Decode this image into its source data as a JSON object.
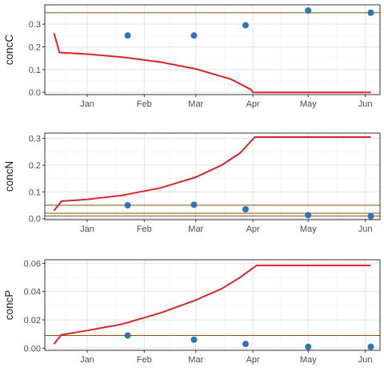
{
  "chart_data": [
    {
      "type": "line",
      "ylabel": "concC",
      "xlabel": "",
      "title": "",
      "x_ticks": [
        "Jan",
        "Feb",
        "Mar",
        "Apr",
        "May",
        "Jun"
      ],
      "ylim": [
        -0.01,
        0.385
      ],
      "y_ticks": [
        0.0,
        0.1,
        0.2,
        0.3
      ],
      "y_tick_labels": [
        "0.0",
        "0.1",
        "0.2",
        "0.3"
      ],
      "grid": true,
      "hline": 0.35,
      "hline_color": "#8c510a",
      "line_color": "#d62728",
      "point_color": "#2e75b6",
      "line": [
        {
          "x": "2020-12-14",
          "y": 0.26
        },
        {
          "x": "2020-12-17",
          "y": 0.175
        },
        {
          "x": "2021-01-01",
          "y": 0.168
        },
        {
          "x": "2021-01-20",
          "y": 0.155
        },
        {
          "x": "2021-02-10",
          "y": 0.133
        },
        {
          "x": "2021-03-01",
          "y": 0.103
        },
        {
          "x": "2021-03-20",
          "y": 0.058
        },
        {
          "x": "2021-03-31",
          "y": 0.012
        },
        {
          "x": "2021-04-01",
          "y": 0.0
        },
        {
          "x": "2021-06-04",
          "y": 0.0
        }
      ],
      "points": [
        {
          "x": "2021-01-23",
          "y": 0.25
        },
        {
          "x": "2021-02-28",
          "y": 0.25
        },
        {
          "x": "2021-03-28",
          "y": 0.295
        },
        {
          "x": "2021-05-01",
          "y": 0.36
        },
        {
          "x": "2021-06-04",
          "y": 0.35
        }
      ]
    },
    {
      "type": "line",
      "ylabel": "concN",
      "xlabel": "",
      "title": "",
      "x_ticks": [
        "Jan",
        "Feb",
        "Mar",
        "Apr",
        "May",
        "Jun"
      ],
      "ylim": [
        -0.004,
        0.32
      ],
      "y_ticks": [
        0.0,
        0.1,
        0.2,
        0.3
      ],
      "y_tick_labels": [
        "0.0",
        "0.1",
        "0.2",
        "0.3"
      ],
      "grid": true,
      "hlines": [
        0.05,
        0.02,
        0.01
      ],
      "hline_color": "#8c510a",
      "line_color": "#d62728",
      "point_color": "#2e75b6",
      "line": [
        {
          "x": "2020-12-14",
          "y": 0.03
        },
        {
          "x": "2020-12-18",
          "y": 0.065
        },
        {
          "x": "2021-01-01",
          "y": 0.072
        },
        {
          "x": "2021-01-20",
          "y": 0.087
        },
        {
          "x": "2021-02-10",
          "y": 0.115
        },
        {
          "x": "2021-03-01",
          "y": 0.155
        },
        {
          "x": "2021-03-15",
          "y": 0.2
        },
        {
          "x": "2021-03-25",
          "y": 0.245
        },
        {
          "x": "2021-04-02",
          "y": 0.305
        },
        {
          "x": "2021-06-04",
          "y": 0.305
        }
      ],
      "points": [
        {
          "x": "2021-01-23",
          "y": 0.05
        },
        {
          "x": "2021-02-28",
          "y": 0.052
        },
        {
          "x": "2021-03-28",
          "y": 0.035
        },
        {
          "x": "2021-05-01",
          "y": 0.013
        },
        {
          "x": "2021-06-04",
          "y": 0.009
        }
      ]
    },
    {
      "type": "line",
      "ylabel": "concP",
      "xlabel": "",
      "title": "",
      "x_ticks": [
        "Jan",
        "Feb",
        "Mar",
        "Apr",
        "May",
        "Jun"
      ],
      "ylim": [
        -0.0015,
        0.0625
      ],
      "y_ticks": [
        0.0,
        0.02,
        0.04,
        0.06
      ],
      "y_tick_labels": [
        "0.00",
        "0.02",
        "0.04",
        "0.06"
      ],
      "grid": true,
      "hline": 0.009,
      "hline_color": "#8c510a",
      "line_color": "#d62728",
      "point_color": "#2e75b6",
      "line": [
        {
          "x": "2020-12-14",
          "y": 0.003
        },
        {
          "x": "2020-12-18",
          "y": 0.0095
        },
        {
          "x": "2021-01-01",
          "y": 0.0125
        },
        {
          "x": "2021-01-20",
          "y": 0.017
        },
        {
          "x": "2021-02-10",
          "y": 0.025
        },
        {
          "x": "2021-03-01",
          "y": 0.034
        },
        {
          "x": "2021-03-15",
          "y": 0.042
        },
        {
          "x": "2021-03-25",
          "y": 0.05
        },
        {
          "x": "2021-04-03",
          "y": 0.0585
        },
        {
          "x": "2021-06-04",
          "y": 0.0585
        }
      ],
      "points": [
        {
          "x": "2021-01-23",
          "y": 0.009
        },
        {
          "x": "2021-02-28",
          "y": 0.006
        },
        {
          "x": "2021-03-28",
          "y": 0.003
        },
        {
          "x": "2021-05-01",
          "y": 0.001
        },
        {
          "x": "2021-06-04",
          "y": 0.001
        }
      ]
    }
  ]
}
